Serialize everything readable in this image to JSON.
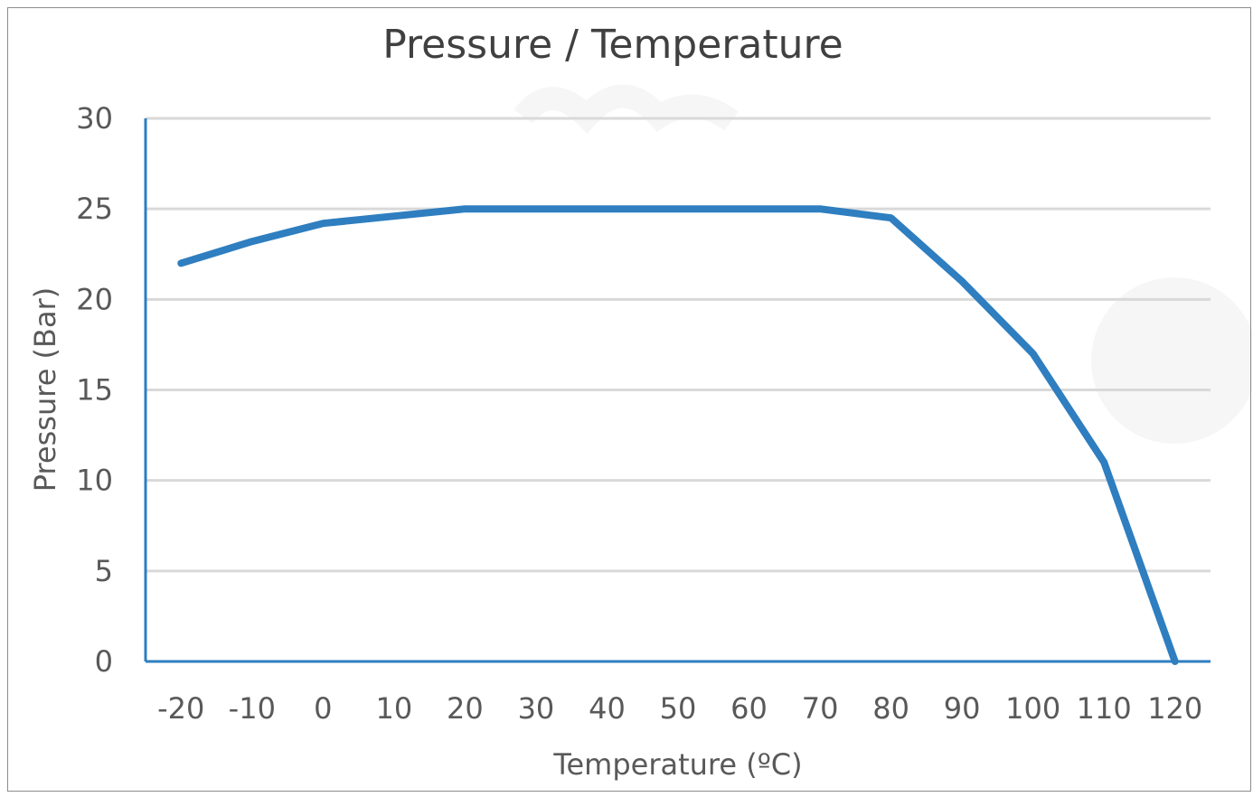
{
  "chart_data": {
    "type": "line",
    "title": "Pressure / Temperature",
    "xlabel": "Temperature (ºC)",
    "ylabel": "Pressure (Bar)",
    "x": [
      -20,
      -10,
      0,
      10,
      20,
      30,
      40,
      50,
      60,
      70,
      80,
      90,
      100,
      110,
      120
    ],
    "x_tick_labels": [
      "-20",
      "-10",
      "0",
      "10",
      "20",
      "30",
      "40",
      "50",
      "60",
      "70",
      "80",
      "90",
      "100",
      "110",
      "120"
    ],
    "y_ticks": [
      0,
      5,
      10,
      15,
      20,
      25,
      30
    ],
    "y_tick_labels": [
      "0",
      "5",
      "10",
      "15",
      "20",
      "25",
      "30"
    ],
    "ylim": [
      0,
      30
    ],
    "grid": true,
    "legend": "none",
    "series": [
      {
        "values": [
          22,
          23.2,
          24.2,
          24.6,
          25,
          25,
          25,
          25,
          25,
          25,
          24.5,
          21,
          17,
          11,
          0
        ],
        "color": "#2E7EC0"
      }
    ],
    "colors": {
      "grid": "#D9D9D9",
      "axis": "#2E7EC0",
      "text": "#595959",
      "title": "#404040"
    }
  }
}
